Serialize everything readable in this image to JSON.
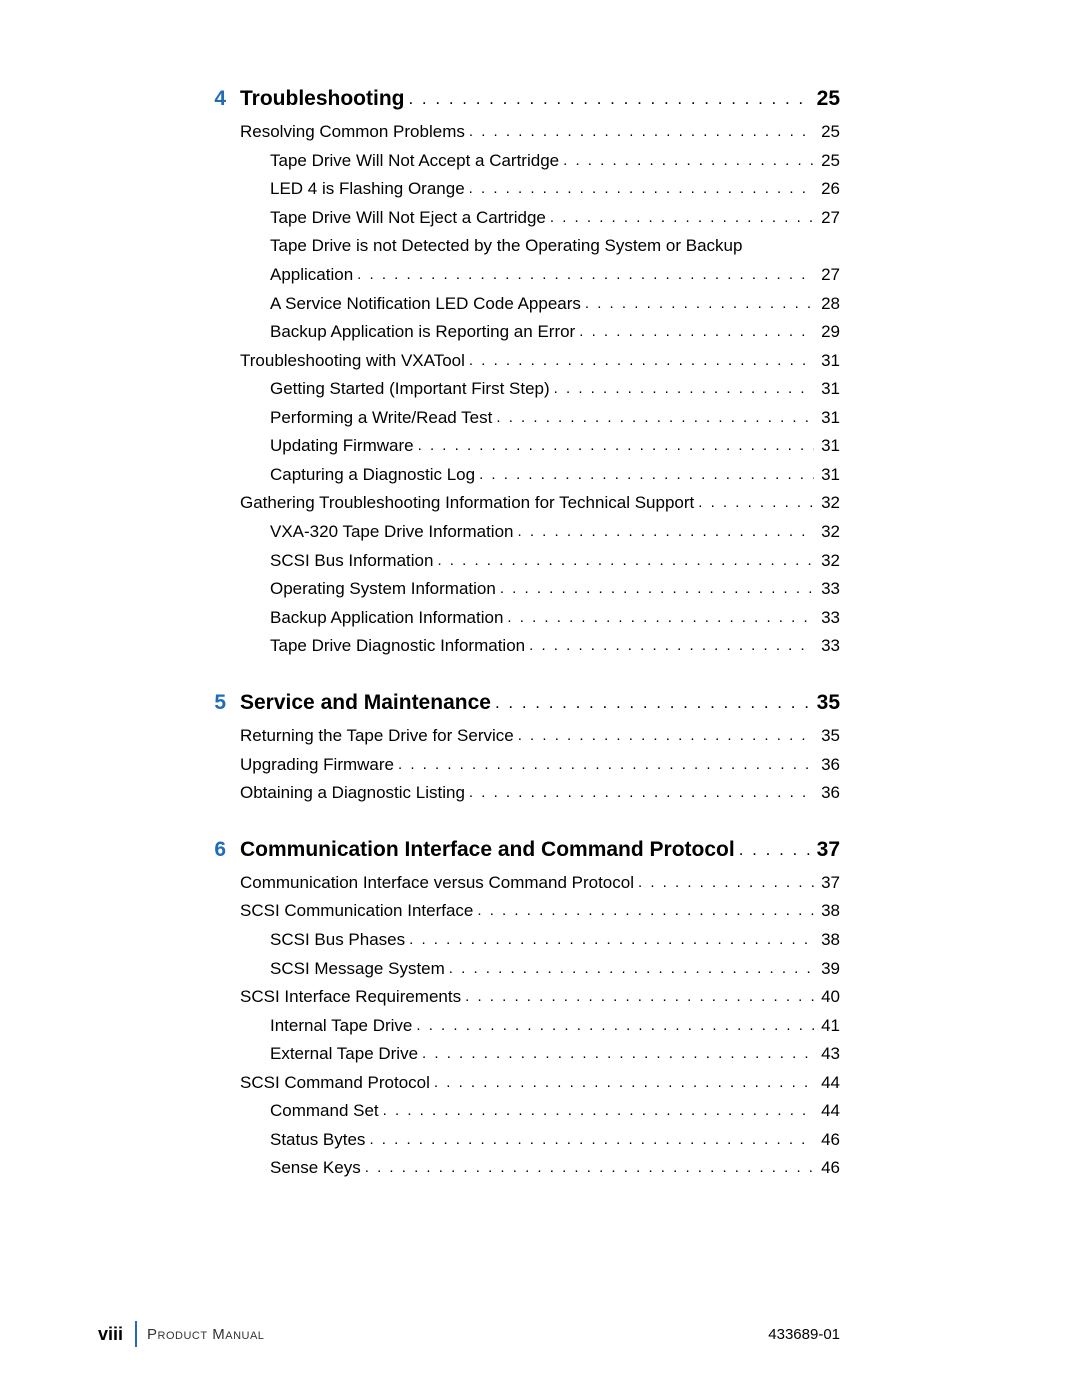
{
  "chapters": [
    {
      "num": "4",
      "title": "Troubleshooting",
      "page": "25",
      "entries": [
        {
          "indent": 1,
          "text": "Resolving Common Problems",
          "page": "25"
        },
        {
          "indent": 2,
          "text": "Tape Drive Will Not Accept a Cartridge",
          "page": "25"
        },
        {
          "indent": 2,
          "text": "LED 4 is Flashing Orange",
          "page": "26"
        },
        {
          "indent": 2,
          "text": "Tape Drive Will Not Eject a Cartridge",
          "page": "27"
        },
        {
          "indent": 2,
          "text": "Tape Drive is not Detected by the Operating System or Backup",
          "cont": "Application",
          "page": "27"
        },
        {
          "indent": 2,
          "text": "A Service Notification LED Code Appears",
          "page": "28"
        },
        {
          "indent": 2,
          "text": "Backup Application is Reporting an Error",
          "page": "29"
        },
        {
          "indent": 1,
          "text": "Troubleshooting with VXATool",
          "page": "31"
        },
        {
          "indent": 2,
          "text": "Getting Started (Important First Step)",
          "page": "31"
        },
        {
          "indent": 2,
          "text": "Performing a Write/Read Test",
          "page": "31"
        },
        {
          "indent": 2,
          "text": "Updating Firmware",
          "page": "31"
        },
        {
          "indent": 2,
          "text": "Capturing a Diagnostic Log",
          "page": "31"
        },
        {
          "indent": 1,
          "text": "Gathering Troubleshooting Information for Technical Support",
          "page": "32"
        },
        {
          "indent": 2,
          "text": "VXA-320 Tape Drive Information",
          "page": "32"
        },
        {
          "indent": 2,
          "text": "SCSI Bus Information",
          "page": "32"
        },
        {
          "indent": 2,
          "text": "Operating System Information",
          "page": "33"
        },
        {
          "indent": 2,
          "text": "Backup Application Information",
          "page": "33"
        },
        {
          "indent": 2,
          "text": "Tape Drive Diagnostic Information",
          "page": "33"
        }
      ]
    },
    {
      "num": "5",
      "title": "Service and Maintenance",
      "page": "35",
      "entries": [
        {
          "indent": 1,
          "text": "Returning the Tape Drive for Service",
          "page": "35"
        },
        {
          "indent": 1,
          "text": "Upgrading Firmware",
          "page": "36"
        },
        {
          "indent": 1,
          "text": "Obtaining a Diagnostic Listing",
          "page": "36"
        }
      ]
    },
    {
      "num": "6",
      "title": "Communication Interface and Command Protocol",
      "page": "37",
      "entries": [
        {
          "indent": 1,
          "text": "Communication Interface versus Command Protocol",
          "page": "37"
        },
        {
          "indent": 1,
          "text": "SCSI Communication Interface",
          "page": "38"
        },
        {
          "indent": 2,
          "text": "SCSI Bus Phases",
          "page": "38"
        },
        {
          "indent": 2,
          "text": "SCSI Message System",
          "page": "39"
        },
        {
          "indent": 1,
          "text": "SCSI Interface Requirements",
          "page": "40"
        },
        {
          "indent": 2,
          "text": "Internal Tape Drive",
          "page": "41"
        },
        {
          "indent": 2,
          "text": "External Tape Drive",
          "page": "43"
        },
        {
          "indent": 1,
          "text": "SCSI Command Protocol",
          "page": "44"
        },
        {
          "indent": 2,
          "text": "Command Set",
          "page": "44"
        },
        {
          "indent": 2,
          "text": "Status Bytes",
          "page": "46"
        },
        {
          "indent": 2,
          "text": "Sense Keys",
          "page": "46"
        }
      ]
    }
  ],
  "footer": {
    "pagenum": "viii",
    "title": "Product Manual",
    "docnum": "433689-01"
  },
  "style": {
    "chapter_num_color": "#1f6db5",
    "body_bg": "#ffffff",
    "text_color": "#000000",
    "divider_color": "#1f6db5",
    "heading_fontsize": 21,
    "entry_fontsize": 17,
    "footer_fontsize": 15
  }
}
